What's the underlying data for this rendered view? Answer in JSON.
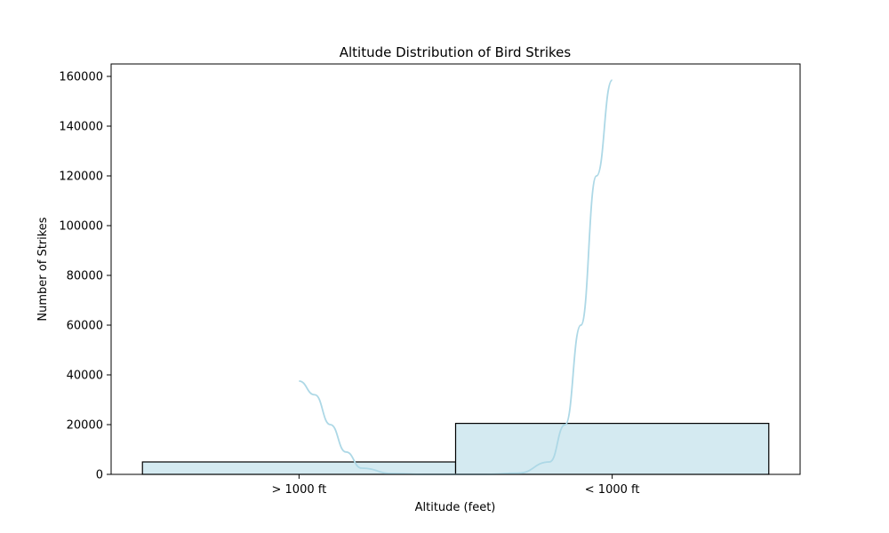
{
  "chart_data": {
    "type": "bar",
    "title": "Altitude Distribution of Bird Strikes",
    "xlabel": "Altitude (feet)",
    "ylabel": "Number of Strikes",
    "categories": [
      "> 1000 ft",
      "< 1000 ft"
    ],
    "values": [
      5000,
      20500
    ],
    "ylim": [
      0,
      165000
    ],
    "yticks": [
      0,
      20000,
      40000,
      60000,
      80000,
      100000,
      120000,
      140000,
      160000
    ],
    "ytick_labels": [
      "0",
      "20000",
      "40000",
      "60000",
      "80000",
      "100000",
      "120000",
      "140000",
      "160000"
    ],
    "bar_color": "#d4eaf1",
    "bar_edge_color": "#000000",
    "kde": {
      "color": "#add8e6",
      "segments": [
        {
          "category_index": 0,
          "points": [
            [
              0,
              37500
            ],
            [
              0.05,
              32000
            ],
            [
              0.1,
              20000
            ],
            [
              0.15,
              9000
            ],
            [
              0.2,
              2500
            ],
            [
              0.3,
              300
            ],
            [
              0.4,
              0
            ],
            [
              0.5,
              0
            ]
          ]
        },
        {
          "category_index": 1,
          "points": [
            [
              -0.5,
              0
            ],
            [
              -0.4,
              0
            ],
            [
              -0.3,
              500
            ],
            [
              -0.2,
              5000
            ],
            [
              -0.15,
              20000
            ],
            [
              -0.1,
              60000
            ],
            [
              -0.05,
              120000
            ],
            [
              0,
              158500
            ]
          ]
        }
      ]
    },
    "grid": false,
    "legend": "none"
  }
}
